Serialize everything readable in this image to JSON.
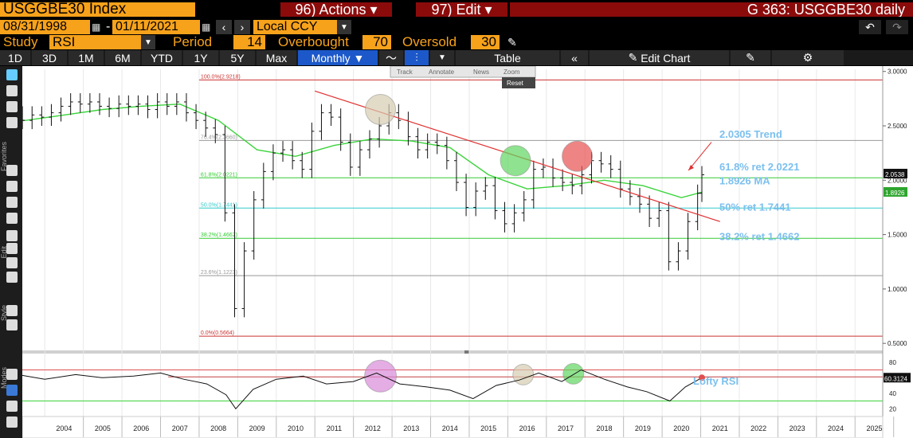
{
  "header": {
    "ticker": "USGGBE30 Index",
    "actions_label": "96) Actions ▾",
    "edit_label": "97) Edit ▾",
    "chart_title": "G 363: USGGBE30 daily"
  },
  "controls": {
    "start_date": "08/31/1998",
    "end_date": "01/11/2021",
    "currency": "Local CCY",
    "study_label": "Study",
    "study_value": "RSI",
    "period_label": "Period",
    "period_value": "14",
    "overbought_label": "Overbought",
    "overbought_value": "70",
    "oversold_label": "Oversold",
    "oversold_value": "30"
  },
  "toolbar": {
    "ranges": [
      "1D",
      "3D",
      "1M",
      "6M",
      "YTD",
      "1Y",
      "5Y",
      "Max"
    ],
    "frequency": "Monthly ▼",
    "table_label": "Table",
    "edit_chart_label": "Edit Chart"
  },
  "chart_menu": {
    "track": "Track",
    "annotate": "Annotate",
    "news": "News",
    "zoom": "Zoom",
    "reset": "Reset"
  },
  "side_labels": {
    "favorites": "Favorites",
    "edit": "Edit",
    "style": "Style",
    "modes": "Modes"
  },
  "chart_data": {
    "type": "line",
    "series_type": "ohlc",
    "x_ticks": [
      "2004",
      "2005",
      "2006",
      "2007",
      "2008",
      "2009",
      "2010",
      "2011",
      "2012",
      "2013",
      "2014",
      "2015",
      "2016",
      "2017",
      "2018",
      "2019",
      "2020",
      "2021",
      "2022",
      "2023",
      "2024",
      "2025"
    ],
    "y_ticks": [
      "3.0000",
      "2.5000",
      "2.0000",
      "1.5000",
      "1.0000",
      "0.5000"
    ],
    "ylim": [
      0.45,
      3.02
    ],
    "price_label": "2.0538",
    "ma_label": "1.8926",
    "fib_levels": [
      {
        "label": "100.0%(2.9218)",
        "value": 2.9218,
        "color": "#cc3333"
      },
      {
        "label": "76.4%(2.3660)",
        "value": 2.366,
        "color": "#999999"
      },
      {
        "label": "61.8%(2.0221)",
        "value": 2.0221,
        "color": "#33cc33"
      },
      {
        "label": "50.0%(1.7441)",
        "value": 1.7441,
        "color": "#33cccc"
      },
      {
        "label": "38.2%(1.4662)",
        "value": 1.4662,
        "color": "#33cc33"
      },
      {
        "label": "23.6%(1.1223)",
        "value": 1.1223,
        "color": "#999999"
      },
      {
        "label": "0.0%(0.5664)",
        "value": 0.5664,
        "color": "#cc3333"
      }
    ],
    "annotations": [
      {
        "text": "2.0305 Trend"
      },
      {
        "text": "61.8% ret 2.0221"
      },
      {
        "text": "1.8926 MA"
      },
      {
        "text": "50% ret 1.7441"
      },
      {
        "text": "38.2% ret 1.4662"
      }
    ],
    "trendline": {
      "from": [
        2011.0,
        2.82
      ],
      "to": [
        2021.5,
        1.62
      ]
    },
    "circles": [
      {
        "x": 2012.7,
        "y": 2.65,
        "color": "#d6ccb0"
      },
      {
        "x": 2016.2,
        "y": 2.18,
        "color": "#5fd65f"
      },
      {
        "x": 2017.8,
        "y": 2.22,
        "color": "#e85050"
      }
    ],
    "price": {
      "x": [
        1998.67,
        1998.92,
        1999.17,
        1999.42,
        1999.67,
        1999.92,
        2000.17,
        2000.42,
        2000.67,
        2000.92,
        2001.17,
        2001.42,
        2001.67,
        2001.92,
        2002.17,
        2002.42,
        2002.67,
        2002.92,
        2003.17,
        2003.42,
        2003.67,
        2003.92,
        2004.17,
        2004.42,
        2004.67,
        2004.92,
        2005.17,
        2005.42,
        2005.67,
        2005.92,
        2006.17,
        2006.42,
        2006.67,
        2006.92,
        2007.17,
        2007.42,
        2007.67,
        2007.92,
        2008.17,
        2008.42,
        2008.67,
        2008.92,
        2009.17,
        2009.42,
        2009.67,
        2009.92,
        2010.17,
        2010.42,
        2010.67,
        2010.92,
        2011.17,
        2011.42,
        2011.67,
        2011.92,
        2012.17,
        2012.42,
        2012.67,
        2012.92,
        2013.17,
        2013.42,
        2013.67,
        2013.92,
        2014.17,
        2014.42,
        2014.67,
        2014.92,
        2015.17,
        2015.42,
        2015.67,
        2015.92,
        2016.17,
        2016.42,
        2016.67,
        2016.92,
        2017.17,
        2017.42,
        2017.67,
        2017.92,
        2018.17,
        2018.42,
        2018.67,
        2018.92,
        2019.17,
        2019.42,
        2019.67,
        2019.92,
        2020.17,
        2020.42,
        2020.67,
        2020.92,
        2021.03
      ],
      "y": [
        2.45,
        2.38,
        2.62,
        2.7,
        2.82,
        2.88,
        2.96,
        2.9,
        2.84,
        2.78,
        2.8,
        2.86,
        2.92,
        2.84,
        2.75,
        2.78,
        2.72,
        2.64,
        2.6,
        2.55,
        2.6,
        2.58,
        2.62,
        2.68,
        2.72,
        2.7,
        2.72,
        2.68,
        2.66,
        2.7,
        2.68,
        2.7,
        2.65,
        2.72,
        2.68,
        2.72,
        2.62,
        2.55,
        2.48,
        2.42,
        1.7,
        0.82,
        1.35,
        1.82,
        2.08,
        2.25,
        2.28,
        2.18,
        2.1,
        2.45,
        2.62,
        2.58,
        2.35,
        2.12,
        2.28,
        2.38,
        2.5,
        2.62,
        2.55,
        2.4,
        2.28,
        2.35,
        2.32,
        2.18,
        1.98,
        1.75,
        1.9,
        1.95,
        1.72,
        1.6,
        1.7,
        1.82,
        2.1,
        2.12,
        2.02,
        1.98,
        1.95,
        2.05,
        2.18,
        2.15,
        2.1,
        1.92,
        1.85,
        1.78,
        1.65,
        1.72,
        1.25,
        1.35,
        1.62,
        1.88,
        2.05
      ]
    },
    "ma": {
      "x": [
        1998.67,
        1999.5,
        2000.5,
        2001.5,
        2002.5,
        2003.5,
        2004.5,
        2005.5,
        2006.5,
        2007.5,
        2008.5,
        2009.5,
        2010.5,
        2011.5,
        2012.5,
        2013.5,
        2014.5,
        2015.5,
        2016.5,
        2017.5,
        2018.5,
        2019.5,
        2020.5,
        2021.03
      ],
      "y": [
        2.3,
        2.48,
        2.6,
        2.62,
        2.58,
        2.55,
        2.6,
        2.65,
        2.68,
        2.7,
        2.55,
        2.28,
        2.22,
        2.32,
        2.38,
        2.36,
        2.3,
        2.05,
        1.92,
        1.95,
        2.0,
        1.95,
        1.84,
        1.89
      ]
    },
    "rsi": {
      "ticks": [
        "80",
        "60",
        "40",
        "20"
      ],
      "value_label": "60.3124",
      "overbought": 70,
      "oversold": 30,
      "annotation": "Lofty RSI",
      "x": [
        1998.67,
        1999.5,
        2000.3,
        2001.0,
        2001.8,
        2002.5,
        2003.3,
        2004.0,
        2004.8,
        2005.5,
        2006.3,
        2007.0,
        2007.6,
        2008.2,
        2008.7,
        2008.95,
        2009.4,
        2010.0,
        2010.7,
        2011.3,
        2012.0,
        2012.6,
        2013.2,
        2013.9,
        2014.5,
        2015.1,
        2015.7,
        2016.3,
        2016.8,
        2017.4,
        2017.9,
        2018.5,
        2019.1,
        2019.6,
        2020.2,
        2020.6,
        2021.03
      ],
      "y": [
        66,
        72,
        70,
        67,
        74,
        72,
        64,
        58,
        64,
        60,
        62,
        66,
        58,
        52,
        38,
        20,
        45,
        58,
        62,
        52,
        55,
        66,
        52,
        48,
        44,
        33,
        50,
        57,
        66,
        55,
        70,
        58,
        48,
        42,
        30,
        48,
        60
      ]
    },
    "rsi_circles": [
      {
        "x": 2012.7,
        "y": 62,
        "color": "#d88ad8"
      },
      {
        "x": 2016.4,
        "y": 64,
        "color": "#d6ccb0"
      },
      {
        "x": 2017.7,
        "y": 65,
        "color": "#5fd65f"
      }
    ]
  }
}
